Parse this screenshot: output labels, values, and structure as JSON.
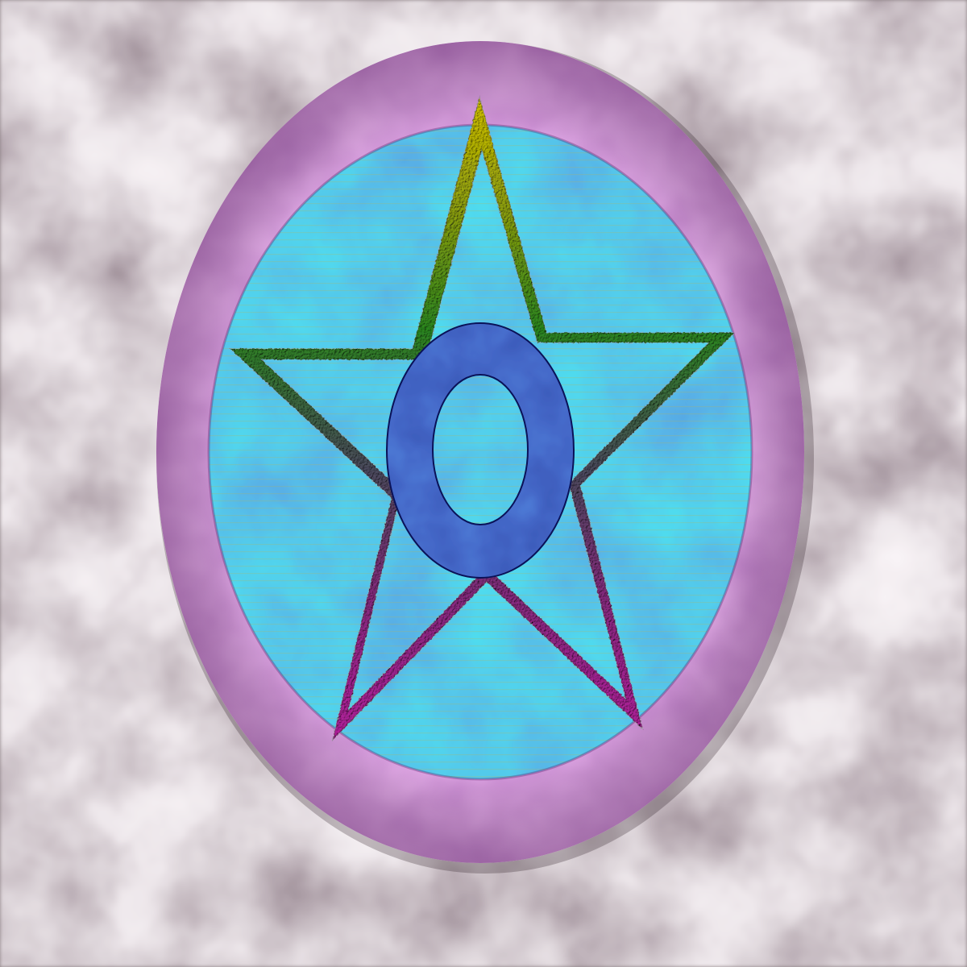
{
  "emblem": {
    "colors": {
      "background_light": "#efe6e8",
      "background_mid": "#9a8d91",
      "background_dark": "#1e1018",
      "frame": "#b455c0",
      "frame_light": "#d77ee3",
      "frame_dark": "#7a2d86",
      "field_cyan": "#14c9d9",
      "field_blue": "#1e5cc4",
      "star_top": "#c8b400",
      "star_mid": "#2f8d1c",
      "star_lower": "#4a4a5e",
      "star_bottom": "#b01f9a",
      "ring_light": "#1a3db8",
      "ring_dark": "#0c1670"
    },
    "icon": "star-with-ring-emblem"
  }
}
